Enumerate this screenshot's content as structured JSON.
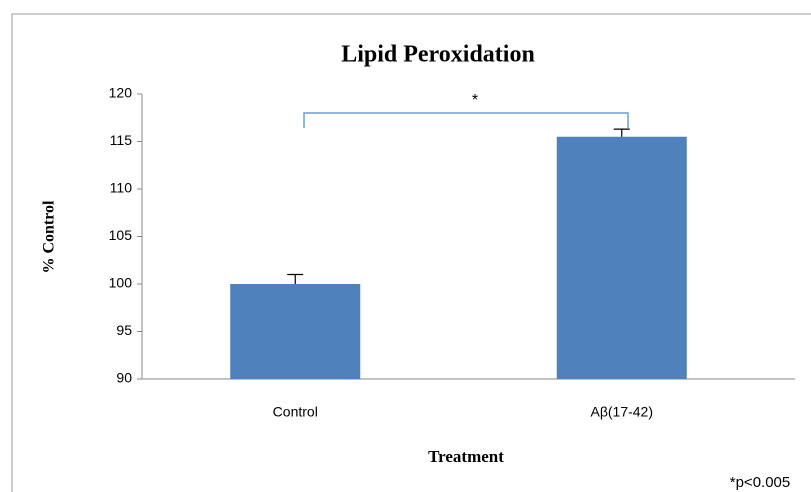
{
  "chart_data": {
    "type": "bar",
    "title": "Lipid Peroxidation",
    "categories": [
      "Control",
      "Aβ(17-42)"
    ],
    "values": [
      100,
      115.5
    ],
    "errors": [
      1.0,
      0.8
    ],
    "color": "#4f81bd",
    "xlabel": "Treatment",
    "ylabel": "% Control",
    "ylim": [
      90,
      120
    ],
    "yticks": [
      90,
      95,
      100,
      105,
      110,
      115,
      120
    ],
    "grid": false,
    "annotation": "*",
    "footnote": "*p<0.005"
  }
}
